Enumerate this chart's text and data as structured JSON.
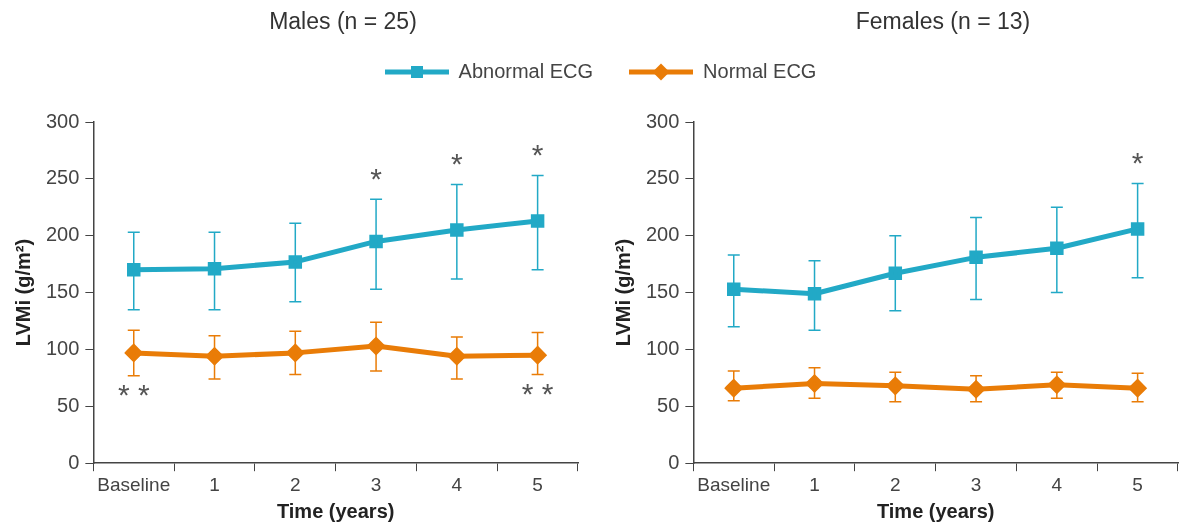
{
  "chart_data": [
    {
      "type": "line",
      "title": "Males (n = 25)",
      "xlabel": "Time (years)",
      "ylabel": "LVMi (g/m²)",
      "categories": [
        "Baseline",
        "1",
        "2",
        "3",
        "4",
        "5"
      ],
      "ylim": [
        0,
        300
      ],
      "yticks": [
        0,
        50,
        100,
        150,
        200,
        250,
        300
      ],
      "grid": false,
      "legend": "top",
      "line_style": "solid",
      "series": [
        {
          "name": "Abnormal ECG",
          "color": "#22a9c6",
          "marker": "square",
          "values": [
            170,
            171,
            177,
            195,
            205,
            213
          ],
          "errors": [
            [
              135,
              203
            ],
            [
              135,
              203
            ],
            [
              142,
              211
            ],
            [
              153,
              232
            ],
            [
              162,
              245
            ],
            [
              170,
              253
            ]
          ]
        },
        {
          "name": "Normal ECG",
          "color": "#e97c07",
          "marker": "diamond",
          "values": [
            97,
            94,
            97,
            103,
            94,
            95
          ],
          "errors": [
            [
              77,
              117
            ],
            [
              74,
              112
            ],
            [
              78,
              116
            ],
            [
              81,
              124
            ],
            [
              74,
              111
            ],
            [
              78,
              115
            ]
          ]
        }
      ],
      "annotations": [
        "*",
        "*",
        "*",
        "* *",
        "* *"
      ]
    },
    {
      "type": "line",
      "title": "Females (n = 13)",
      "xlabel": "Time (years)",
      "ylabel": "LVMi (g/m²)",
      "categories": [
        "Baseline",
        "1",
        "2",
        "3",
        "4",
        "5"
      ],
      "ylim": [
        0,
        300
      ],
      "yticks": [
        0,
        50,
        100,
        150,
        200,
        250,
        300
      ],
      "grid": false,
      "line_style": "solid",
      "series": [
        {
          "color": "#22a9c6",
          "marker": "square",
          "values": [
            153,
            149,
            167,
            181,
            189,
            206
          ],
          "errors": [
            [
              120,
              183
            ],
            [
              117,
              178
            ],
            [
              134,
              200
            ],
            [
              144,
              216
            ],
            [
              150,
              225
            ],
            [
              163,
              246
            ]
          ]
        },
        {
          "color": "#e97c07",
          "marker": "diamond",
          "values": [
            66,
            70,
            68,
            65,
            69,
            66
          ],
          "errors": [
            [
              55,
              81
            ],
            [
              57,
              84
            ],
            [
              54,
              80
            ],
            [
              54,
              77
            ],
            [
              57,
              80
            ],
            [
              54,
              79
            ]
          ]
        }
      ],
      "annotations": [
        "*"
      ]
    }
  ]
}
